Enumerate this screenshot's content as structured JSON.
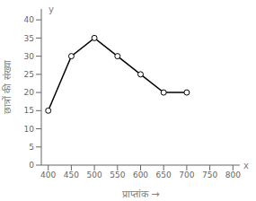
{
  "chart_data": {
    "type": "line",
    "xlabel": "प्राप्तांक  →",
    "ylabel": "छात्रों की संख्या",
    "annotations": [
      "y",
      "x"
    ],
    "x": [
      400,
      450,
      500,
      550,
      600,
      650,
      700
    ],
    "values": [
      15,
      30,
      35,
      30,
      25,
      20,
      20
    ],
    "color": "#000000",
    "marker": "circle",
    "xlim": [
      385,
      815
    ],
    "ylim": [
      0,
      43
    ],
    "xticks": [
      400,
      450,
      500,
      550,
      600,
      650,
      700,
      750,
      800
    ],
    "yticks": [
      0,
      5,
      10,
      15,
      20,
      25,
      30,
      35,
      40
    ],
    "grid": false
  }
}
